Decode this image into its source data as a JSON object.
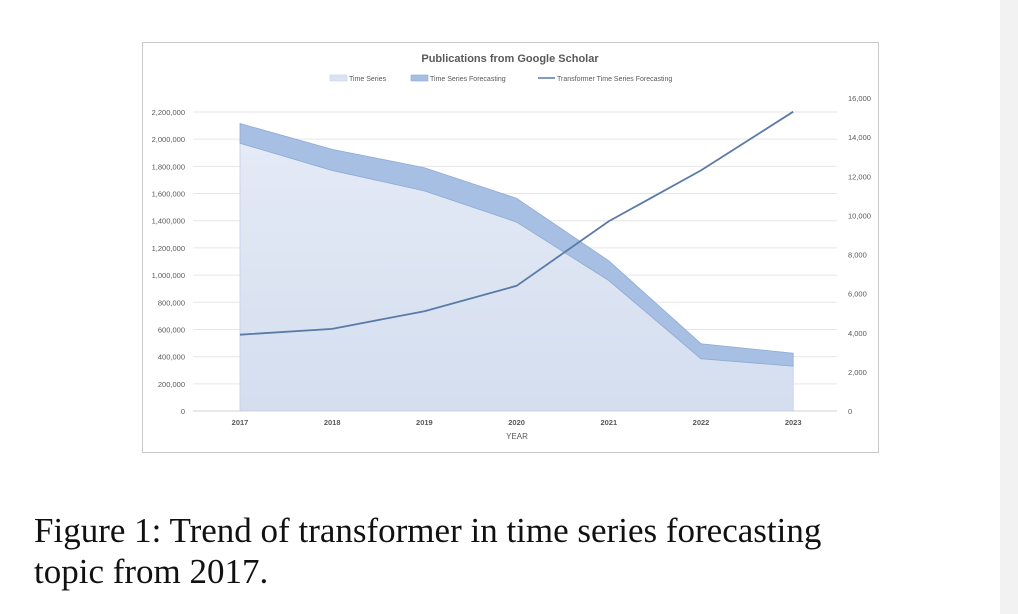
{
  "chart_data": {
    "type": "area",
    "title": "Publications from Google Scholar",
    "xlabel": "YEAR",
    "categories": [
      "2017",
      "2018",
      "2019",
      "2020",
      "2021",
      "2022",
      "2023"
    ],
    "legend_position": "top",
    "grid": true,
    "y_left": {
      "range": [
        0,
        2200000
      ],
      "ticks": [
        "0",
        "200,000",
        "400,000",
        "600,000",
        "800,000",
        "1,000,000",
        "1,200,000",
        "1,400,000",
        "1,600,000",
        "1,800,000",
        "2,000,000",
        "2,200,000"
      ]
    },
    "y_right": {
      "range": [
        0,
        16000
      ],
      "ticks": [
        "0",
        "2,000",
        "4,000",
        "6,000",
        "8,000",
        "10,000",
        "12,000",
        "14,000",
        "16,000"
      ]
    },
    "series": [
      {
        "name": "Time Series",
        "kind": "area",
        "axis": "left",
        "color": "#d4deef",
        "values": [
          1970000,
          1770000,
          1620000,
          1390000,
          960000,
          385000,
          330000
        ]
      },
      {
        "name": "Time Series Forecasting",
        "kind": "stacked-area",
        "axis": "left",
        "color": "#a7bfe2",
        "values": [
          145000,
          155000,
          170000,
          175000,
          145000,
          110000,
          95000
        ]
      },
      {
        "name": "Transformer Time Series Forecasting",
        "kind": "line",
        "axis": "right",
        "color": "#5a7aa8",
        "values": [
          3900,
          4200,
          5100,
          6400,
          9700,
          12300,
          15300
        ]
      }
    ]
  },
  "caption": {
    "line1": "Figure 1: Trend of transformer in time series forecasting",
    "line2": "topic from 2017."
  }
}
